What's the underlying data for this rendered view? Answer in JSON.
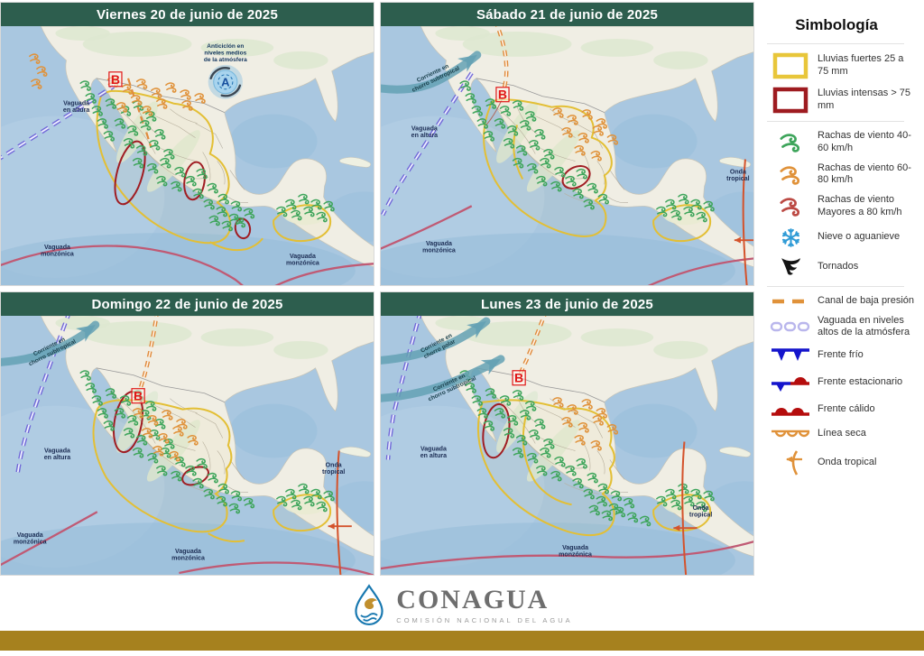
{
  "panels": [
    {
      "id": "viernes",
      "title": "Viernes 20 de junio de 2025",
      "labels": {
        "vaguada_altura": [
          "Vaguada",
          "en altura"
        ],
        "vaguada_monzonica_left": [
          "Vaguada",
          "monzónica"
        ],
        "vaguada_monzonica_right": [
          "Vaguada",
          "monzónica"
        ],
        "anticiclon": [
          "Anticiclón en",
          "niveles medios",
          "de la atmósfera"
        ],
        "anticiclon_letter": "A",
        "low_marker": "B"
      }
    },
    {
      "id": "sabado",
      "title": "Sábado 21 de junio de 2025",
      "labels": {
        "corriente_subtropical": [
          "Corriente en",
          "chorro subtropical"
        ],
        "vaguada_altura": [
          "Vaguada",
          "en altura"
        ],
        "vaguada_monzonica": [
          "Vaguada",
          "monzónica"
        ],
        "onda_tropical": [
          "Onda",
          "tropical"
        ],
        "low_marker": "B"
      }
    },
    {
      "id": "domingo",
      "title": "Domingo 22 de junio de 2025",
      "labels": {
        "corriente_subtropical": [
          "Corriente en",
          "chorro subtropical"
        ],
        "vaguada_altura": [
          "Vaguada",
          "en altura"
        ],
        "vaguada_monzonica_left": [
          "Vaguada",
          "monzónica"
        ],
        "vaguada_monzonica_center": [
          "Vaguada",
          "monzónica"
        ],
        "onda_tropical": [
          "Onda",
          "tropical"
        ],
        "low_marker": "B"
      }
    },
    {
      "id": "lunes",
      "title": "Lunes 23 de junio de 2025",
      "labels": {
        "corriente_polar": [
          "Corriente en",
          "chorro polar"
        ],
        "corriente_subtropical": [
          "Corriente en",
          "chorro subtropical"
        ],
        "vaguada_altura": [
          "Vaguada",
          "en altura"
        ],
        "vaguada_monzonica": [
          "Vaguada",
          "monzónica"
        ],
        "onda_tropical": [
          "Onda",
          "tropical"
        ],
        "low_marker": "B"
      }
    }
  ],
  "legend": {
    "title": "Simbología",
    "items": [
      {
        "icon": "heavy-rain-box-icon",
        "label": "Lluvias fuertes 25 a 75 mm",
        "color": "#e8c63a"
      },
      {
        "icon": "intense-rain-box-icon",
        "label": "Lluvias intensas > 75 mm",
        "color": "#9e1b20"
      },
      {
        "icon": "wind-gust-40-icon",
        "label": "Rachas de viento 40-60 km/h",
        "color": "#3ea55b"
      },
      {
        "icon": "wind-gust-60-icon",
        "label": "Rachas de viento 60-80 km/h",
        "color": "#e0923a"
      },
      {
        "icon": "wind-gust-80-icon",
        "label": "Rachas de viento Mayores a 80 km/h",
        "color": "#bc4a44"
      },
      {
        "icon": "snowflake-icon",
        "label": "Nieve o aguanieve",
        "color": "#2f9bd6"
      },
      {
        "icon": "tornado-icon",
        "label": "Tornados",
        "color": "#141414"
      },
      {
        "icon": "low-pressure-channel-icon",
        "label": "Canal de baja presión",
        "color": "#e0923a"
      },
      {
        "icon": "upper-trough-icon",
        "label": "Vaguada en niveles altos de la atmósfera",
        "color": "#b9b6ec"
      },
      {
        "icon": "cold-front-icon",
        "label": "Frente frío",
        "color": "#1414cc"
      },
      {
        "icon": "stationary-front-icon",
        "label": "Frente estacionario",
        "color": "#1414cc"
      },
      {
        "icon": "warm-front-icon",
        "label": "Frente cálido",
        "color": "#b50d0d"
      },
      {
        "icon": "dry-line-icon",
        "label": "Línea seca",
        "color": "#e0923a"
      },
      {
        "icon": "tropical-wave-icon",
        "label": "Onda tropical",
        "color": "#e0923a"
      }
    ]
  },
  "footer": {
    "brand": "CONAGUA",
    "subtitle": "COMISIÓN NACIONAL DEL AGUA"
  },
  "colors": {
    "header_bg": "#2d5e4e",
    "accent_bar": "#a6811e",
    "rain_heavy": "#e8c63a",
    "rain_intense": "#9e1b20",
    "gust_green": "#3ea55b",
    "gust_orange": "#e0923a",
    "gust_red": "#bc4a44",
    "monsoon_trough": "#c05a74",
    "upper_trough": "#6a5ed6",
    "jet_stream": "#64a1b4",
    "tropical_wave": "#d4532c"
  }
}
